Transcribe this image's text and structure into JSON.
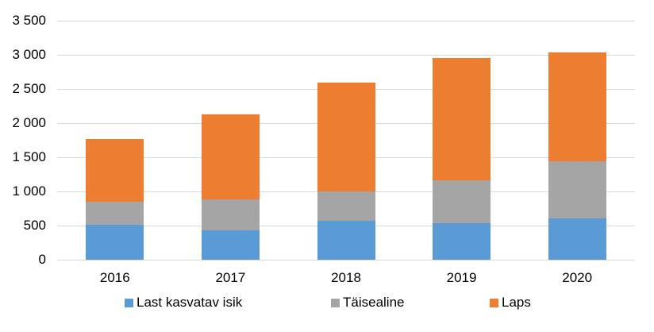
{
  "chart_data": {
    "type": "bar",
    "stacked": true,
    "title": "",
    "xlabel": "",
    "ylabel": "",
    "categories": [
      "2016",
      "2017",
      "2018",
      "2019",
      "2020"
    ],
    "series": [
      {
        "name": "Last kasvatav isik",
        "color": "#5B9BD5",
        "values": [
          507,
          426,
          573,
          530,
          605
        ]
      },
      {
        "name": "Täisealine",
        "color": "#A5A5A5",
        "values": [
          342,
          453,
          430,
          633,
          840
        ]
      },
      {
        "name": "Laps",
        "color": "#ED7D31",
        "values": [
          914,
          1249,
          1594,
          1786,
          1585
        ]
      }
    ],
    "totals": [
      1763,
      2128,
      2597,
      2949,
      3030
    ],
    "ylim": [
      0,
      3500
    ],
    "yticks": [
      0,
      500,
      1000,
      1500,
      2000,
      2500,
      3000,
      3500
    ],
    "ytick_labels": [
      "0",
      "500",
      "1 000",
      "1 500",
      "2 000",
      "2 500",
      "3 000",
      "3 500"
    ],
    "grid": true,
    "legend_position": "bottom"
  }
}
